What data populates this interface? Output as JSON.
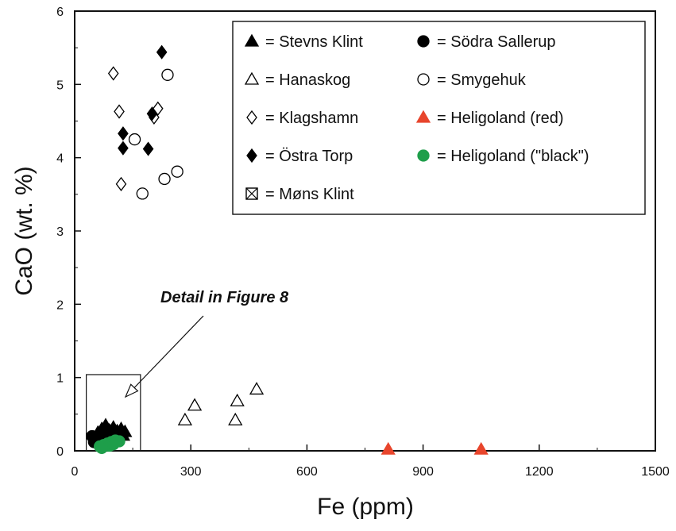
{
  "chart_data": {
    "type": "scatter",
    "xlabel": "Fe (ppm)",
    "ylabel": "CaO (wt. %)",
    "xlim": [
      0,
      1500
    ],
    "ylim": [
      0,
      6
    ],
    "xticks": [
      0,
      300,
      600,
      900,
      1200,
      1500
    ],
    "yticks": [
      0,
      1,
      2,
      3,
      4,
      5,
      6
    ],
    "xtick_labels": [
      "0",
      "300",
      "600",
      "900",
      "1200",
      "1500"
    ],
    "ytick_labels": [
      "0",
      "1",
      "2",
      "3",
      "4",
      "5",
      "6"
    ],
    "grid": false,
    "legend_position": "top-right",
    "legend_columns": [
      [
        {
          "label": "= Stevns Klint",
          "marker": "triangle",
          "fill": "#000000",
          "stroke": "#000000"
        },
        {
          "label": "= Hanaskog",
          "marker": "triangle",
          "fill": "#ffffff",
          "stroke": "#000000"
        },
        {
          "label": "= Klagshamn",
          "marker": "diamond",
          "fill": "#ffffff",
          "stroke": "#000000"
        },
        {
          "label": "= Östra Torp",
          "marker": "diamond",
          "fill": "#000000",
          "stroke": "#000000"
        },
        {
          "label": "= Møns Klint",
          "marker": "boxcross",
          "fill": "#ffffff",
          "stroke": "#000000"
        }
      ],
      [
        {
          "label": "= Södra Sallerup",
          "marker": "circle",
          "fill": "#000000",
          "stroke": "#000000"
        },
        {
          "label": "= Smygehuk",
          "marker": "circle",
          "fill": "#ffffff",
          "stroke": "#000000"
        },
        {
          "label": "= Heligoland (red)",
          "marker": "triangle",
          "fill": "#e8452c",
          "stroke": "#e8452c"
        },
        {
          "label": "= Heligoland (\"black\")",
          "marker": "circle",
          "fill": "#1e9e4a",
          "stroke": "#1e9e4a"
        }
      ]
    ],
    "annotation": {
      "text": "Detail in Figure 8",
      "box_x": [
        30,
        170
      ],
      "box_y": [
        0,
        1.04
      ]
    },
    "series": [
      {
        "name": "Stevns Klint",
        "marker": "triangle",
        "fill": "#000000",
        "stroke": "#000000",
        "x": [
          60,
          70,
          80,
          90,
          100,
          110,
          120,
          130,
          65,
          85,
          95,
          115,
          125,
          75,
          105
        ],
        "y": [
          0.25,
          0.3,
          0.35,
          0.28,
          0.32,
          0.27,
          0.3,
          0.26,
          0.2,
          0.22,
          0.18,
          0.24,
          0.21,
          0.15,
          0.19
        ]
      },
      {
        "name": "Hanaskog",
        "marker": "triangle",
        "fill": "#ffffff",
        "stroke": "#000000",
        "x": [
          285,
          310,
          420,
          415,
          470
        ],
        "y": [
          0.42,
          0.62,
          0.68,
          0.42,
          0.84
        ]
      },
      {
        "name": "Klagshamn",
        "marker": "diamond",
        "fill": "#ffffff",
        "stroke": "#000000",
        "x": [
          100,
          115,
          120,
          205,
          215
        ],
        "y": [
          5.15,
          4.63,
          3.64,
          4.55,
          4.67
        ]
      },
      {
        "name": "Östra Torp",
        "marker": "diamond",
        "fill": "#000000",
        "stroke": "#000000",
        "x": [
          125,
          125,
          190,
          200,
          225
        ],
        "y": [
          4.33,
          4.13,
          4.12,
          4.6,
          5.44
        ]
      },
      {
        "name": "Södra Sallerup",
        "marker": "circle",
        "fill": "#000000",
        "stroke": "#000000",
        "x": [
          45,
          50,
          60,
          70,
          80
        ],
        "y": [
          0.2,
          0.12,
          0.15,
          0.18,
          0.1
        ]
      },
      {
        "name": "Smygehuk",
        "marker": "circle",
        "fill": "#ffffff",
        "stroke": "#000000",
        "x": [
          155,
          175,
          232,
          240,
          265
        ],
        "y": [
          4.25,
          3.51,
          3.71,
          5.13,
          3.81
        ]
      },
      {
        "name": "Heligoland (red)",
        "marker": "triangle",
        "fill": "#e8452c",
        "stroke": "#e8452c",
        "x": [
          810,
          1050
        ],
        "y": [
          0.02,
          0.02
        ]
      },
      {
        "name": "Heligoland (\"black\")",
        "marker": "circle",
        "fill": "#1e9e4a",
        "stroke": "#1e9e4a",
        "x": [
          65,
          75,
          85,
          95,
          105,
          115,
          70,
          90,
          100
        ],
        "y": [
          0.06,
          0.08,
          0.1,
          0.12,
          0.14,
          0.13,
          0.04,
          0.07,
          0.09
        ]
      }
    ]
  }
}
